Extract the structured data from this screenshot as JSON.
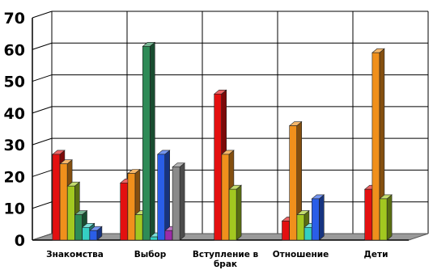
{
  "chart_data": {
    "type": "bar",
    "title": "",
    "xlabel": "",
    "ylabel": "",
    "ylim": [
      0,
      70
    ],
    "yticks": [
      0,
      10,
      20,
      30,
      40,
      50,
      60,
      70
    ],
    "grid": true,
    "legend": "none",
    "categories": [
      "Знакомства",
      "Выбор",
      "Вступление в брак",
      "Отношение",
      "Дети"
    ],
    "category_lines": [
      [
        "Знакомства"
      ],
      [
        "Выбор"
      ],
      [
        "Вступление в",
        "брак"
      ],
      [
        "Отношение"
      ],
      [
        "Дети"
      ]
    ],
    "series_colors": [
      "#e31010",
      "#f0901c",
      "#a2c820",
      "#2e8b57",
      "#35cfc3",
      "#2a5ee8",
      "#9b2ca8",
      "#8a8a8a"
    ],
    "series": [
      {
        "values": [
          27,
          18,
          46,
          6,
          16
        ]
      },
      {
        "values": [
          24,
          21,
          27,
          36,
          59
        ]
      },
      {
        "values": [
          17,
          8,
          16,
          8,
          13
        ]
      },
      {
        "values": [
          8,
          61,
          null,
          null,
          null
        ]
      },
      {
        "values": [
          4,
          1,
          null,
          4,
          null
        ]
      },
      {
        "values": [
          3,
          27,
          null,
          13,
          null
        ]
      },
      {
        "values": [
          null,
          3,
          null,
          null,
          null
        ]
      },
      {
        "values": [
          null,
          23,
          null,
          null,
          null
        ]
      }
    ]
  }
}
